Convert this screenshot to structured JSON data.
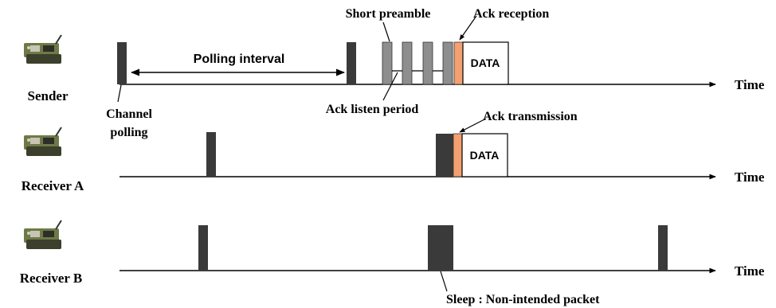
{
  "nodes": {
    "sender": "Sender",
    "receiver_a": "Receiver A",
    "receiver_b": "Receiver B"
  },
  "axis_label": "Time",
  "labels": {
    "polling_interval": "Polling interval",
    "short_preamble": "Short preamble",
    "ack_reception": "Ack reception",
    "channel": "Channel",
    "polling": "polling",
    "ack_listen_period": "Ack listen period",
    "ack_transmission": "Ack transmission",
    "sleep_note": "Sleep : Non-intended packet"
  },
  "data_block": "DATA",
  "colors": {
    "dark_pulse": "#3a3a3a",
    "preamble": "#8e8e8e",
    "ack": "#f4a070",
    "line": "#000000"
  },
  "icons": [
    "sensor-mote-icon",
    "sensor-mote-icon",
    "sensor-mote-icon"
  ]
}
